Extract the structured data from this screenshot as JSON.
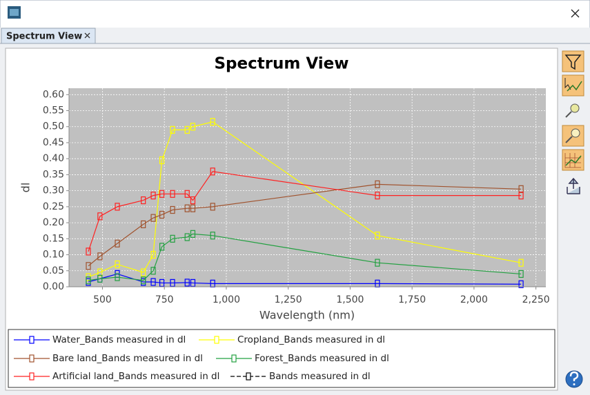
{
  "window": {
    "tab": "Spectrum View"
  },
  "chart_data": {
    "type": "line",
    "title": "Spectrum View",
    "x_label": "Wavelength (nm)",
    "y_label": "dl",
    "x": [
      443,
      490,
      560,
      665,
      705,
      740,
      783,
      842,
      865,
      945,
      1610,
      2190
    ],
    "xlim": [
      365,
      2290
    ],
    "xticks": [
      500,
      750,
      {
        "value": 1000,
        "label": "1,000"
      },
      {
        "value": 1250,
        "label": "1,250"
      },
      {
        "value": 1500,
        "label": "1,500"
      },
      {
        "value": 1750,
        "label": "1,750"
      },
      {
        "value": 2000,
        "label": "2,000"
      },
      {
        "value": 2250,
        "label": "2,250"
      }
    ],
    "ylim": [
      0,
      0.62
    ],
    "yticks": [
      {
        "value": 0,
        "label": "0.00"
      },
      {
        "value": 0.05,
        "label": "0.05"
      },
      {
        "value": 0.1,
        "label": "0.10"
      },
      {
        "value": 0.15,
        "label": "0.15"
      },
      {
        "value": 0.2,
        "label": "0.20"
      },
      {
        "value": 0.25,
        "label": "0.25"
      },
      {
        "value": 0.3,
        "label": "0.30"
      },
      {
        "value": 0.35,
        "label": "0.35"
      },
      {
        "value": 0.4,
        "label": "0.40"
      },
      {
        "value": 0.45,
        "label": "0.45"
      },
      {
        "value": 0.5,
        "label": "0.50"
      },
      {
        "value": 0.55,
        "label": "0.55"
      },
      {
        "value": 0.6,
        "label": "0.60"
      }
    ],
    "grid": true,
    "legend": "bottom",
    "series": [
      {
        "name": "Water_Bands measured in dl",
        "color": "#0000ff",
        "values": [
          0.015,
          0.025,
          0.04,
          0.015,
          0.015,
          0.012,
          0.012,
          0.013,
          0.012,
          0.01,
          0.01,
          0.008
        ]
      },
      {
        "name": "Cropland_Bands measured in dl",
        "color": "#ffff00",
        "values": [
          0.03,
          0.045,
          0.07,
          0.045,
          0.1,
          0.395,
          0.49,
          0.49,
          0.5,
          0.515,
          0.16,
          0.075
        ]
      },
      {
        "name": "Bare land_Bands measured in dl",
        "color": "#a0522d",
        "values": [
          0.065,
          0.095,
          0.135,
          0.195,
          0.215,
          0.225,
          0.24,
          0.245,
          0.245,
          0.25,
          0.32,
          0.305
        ]
      },
      {
        "name": "Forest_Bands measured in dl",
        "color": "#22a040",
        "values": [
          0.02,
          0.025,
          0.03,
          0.02,
          0.05,
          0.125,
          0.15,
          0.155,
          0.165,
          0.16,
          0.075,
          0.04
        ]
      },
      {
        "name": "Artificial land_Bands measured in dl",
        "color": "#ff2020",
        "values": [
          0.11,
          0.22,
          0.25,
          0.27,
          0.285,
          0.29,
          0.29,
          0.29,
          0.27,
          0.36,
          0.285,
          0.285
        ]
      },
      {
        "name": "Bands measured in dl",
        "color": "#000000",
        "values": [
          null,
          null,
          null,
          null,
          null,
          null,
          null,
          null,
          null,
          null,
          null,
          null
        ]
      }
    ]
  }
}
